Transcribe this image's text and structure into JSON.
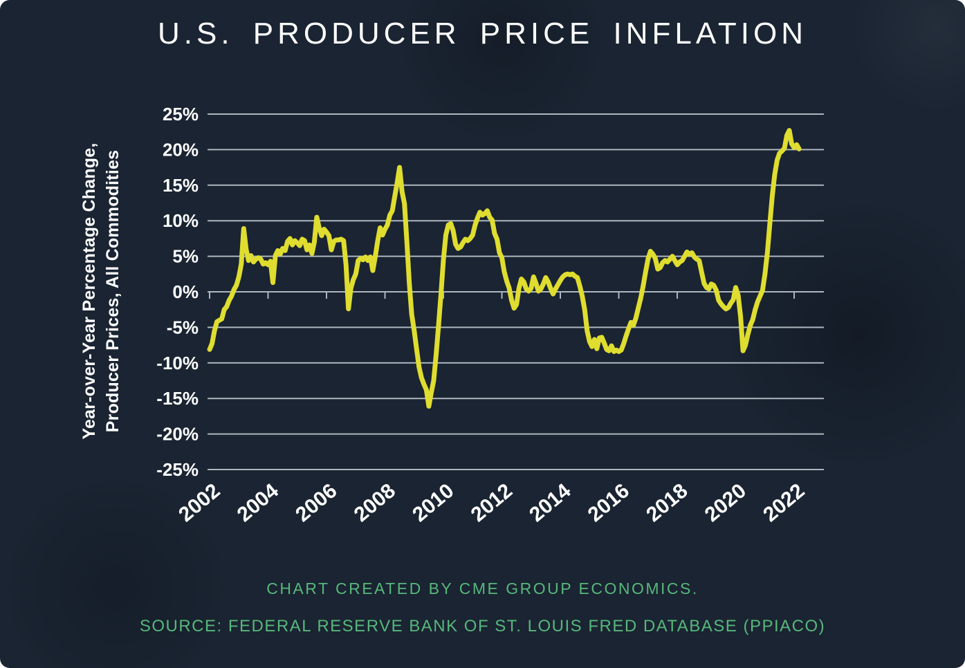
{
  "page": {
    "title": "U.S. PRODUCER PRICE INFLATION"
  },
  "footer": {
    "credit": "CHART CREATED BY CME GROUP ECONOMICS.",
    "source": "SOURCE: FEDERAL RESERVE BANK OF ST. LOUIS FRED DATABASE (PPIACO)"
  },
  "colors": {
    "background": "#1a2432",
    "line": "#dfdd2f",
    "grid": "#aeb7c0",
    "label": "#ffffff",
    "green": "#57b87b"
  },
  "chart_data": {
    "type": "line",
    "title": "U.S. PRODUCER PRICE INFLATION",
    "ylabel_line1": "Year-over-Year Percentage Change,",
    "ylabel_line2": "Producer Prices, All Commodities",
    "xlabel": "",
    "ylim": [
      -25,
      25
    ],
    "grid": true,
    "legend": "none",
    "y_tick_labels": [
      "25%",
      "20%",
      "15%",
      "10%",
      "5%",
      "0%",
      "-5%",
      "-10%",
      "-15%",
      "-20%",
      "-25%"
    ],
    "y_tick_values": [
      25,
      20,
      15,
      10,
      5,
      0,
      -5,
      -10,
      -15,
      -20,
      -25
    ],
    "x_tick_labels": [
      "2002",
      "2004",
      "2006",
      "2008",
      "2010",
      "2012",
      "2014",
      "2016",
      "2018",
      "2020",
      "2022"
    ],
    "x_range": [
      "2002-01",
      "2022-03"
    ],
    "series": [
      {
        "name": "PPI All Commodities, YoY % change",
        "frequency": "monthly",
        "start": "2002-01",
        "values": [
          -8.1,
          -7.3,
          -5.5,
          -4.2,
          -4.0,
          -3.8,
          -2.5,
          -2.1,
          -1.2,
          -0.6,
          0.3,
          0.9,
          2.1,
          3.9,
          8.9,
          6.0,
          4.4,
          5.1,
          4.2,
          4.6,
          4.8,
          4.6,
          3.9,
          4.1,
          3.8,
          4.3,
          1.3,
          5.1,
          5.8,
          5.3,
          6.1,
          5.8,
          7.1,
          7.5,
          6.6,
          7.2,
          6.9,
          6.5,
          7.4,
          7.2,
          5.9,
          6.6,
          5.4,
          7.0,
          10.5,
          9.0,
          7.9,
          8.8,
          8.4,
          7.9,
          5.9,
          7.1,
          7.3,
          7.3,
          7.4,
          7.2,
          3.8,
          -2.4,
          0.5,
          1.7,
          2.5,
          4.4,
          4.7,
          4.5,
          4.9,
          4.4,
          4.9,
          3.0,
          4.9,
          7.1,
          9.0,
          8.0,
          8.8,
          9.4,
          10.8,
          11.4,
          13.4,
          15.3,
          17.5,
          14.1,
          12.4,
          7.0,
          1.2,
          -3.2,
          -5.5,
          -8.1,
          -10.6,
          -12.1,
          -13.0,
          -13.8,
          -16.1,
          -14.2,
          -12.5,
          -8.8,
          -4.7,
          -0.3,
          4.5,
          8.0,
          9.4,
          9.6,
          8.6,
          6.7,
          6.1,
          6.3,
          6.9,
          7.4,
          7.2,
          7.5,
          8.0,
          9.4,
          10.4,
          11.2,
          10.8,
          11.0,
          11.4,
          10.5,
          10.1,
          8.2,
          7.4,
          5.5,
          4.8,
          2.8,
          1.5,
          0.5,
          -1.2,
          -2.3,
          -1.8,
          0.5,
          1.8,
          1.4,
          0.4,
          0.1,
          0.5,
          2.1,
          1.2,
          0.1,
          0.4,
          1.1,
          2.0,
          1.4,
          0.5,
          -0.3,
          0.4,
          1.0,
          1.6,
          2.1,
          2.4,
          2.5,
          2.4,
          2.5,
          2.2,
          2.0,
          0.8,
          -0.6,
          -2.5,
          -5.5,
          -7.0,
          -7.7,
          -6.7,
          -8.0,
          -6.5,
          -6.4,
          -7.2,
          -8.1,
          -8.3,
          -7.6,
          -8.4,
          -8.2,
          -8.4,
          -8.2,
          -7.3,
          -6.2,
          -5.2,
          -4.3,
          -4.7,
          -3.7,
          -2.3,
          -0.9,
          0.8,
          2.8,
          4.6,
          5.7,
          5.3,
          4.7,
          3.2,
          3.4,
          4.1,
          4.4,
          4.2,
          4.6,
          5.0,
          4.4,
          3.8,
          4.2,
          4.4,
          5.0,
          5.6,
          5.3,
          5.5,
          4.9,
          4.6,
          4.4,
          2.8,
          1.2,
          0.6,
          0.4,
          1.1,
          0.9,
          0.2,
          -1.2,
          -1.7,
          -2.1,
          -2.4,
          -2.2,
          -1.6,
          -1.1,
          0.6,
          -0.5,
          -3.5,
          -8.3,
          -7.5,
          -6.0,
          -4.7,
          -3.9,
          -2.5,
          -1.4,
          -0.6,
          0.2,
          2.5,
          5.5,
          9.5,
          13.5,
          16.5,
          18.5,
          19.5,
          19.8,
          20.2,
          22.0,
          22.7,
          20.8,
          20.3,
          20.7,
          20.1
        ]
      }
    ]
  }
}
